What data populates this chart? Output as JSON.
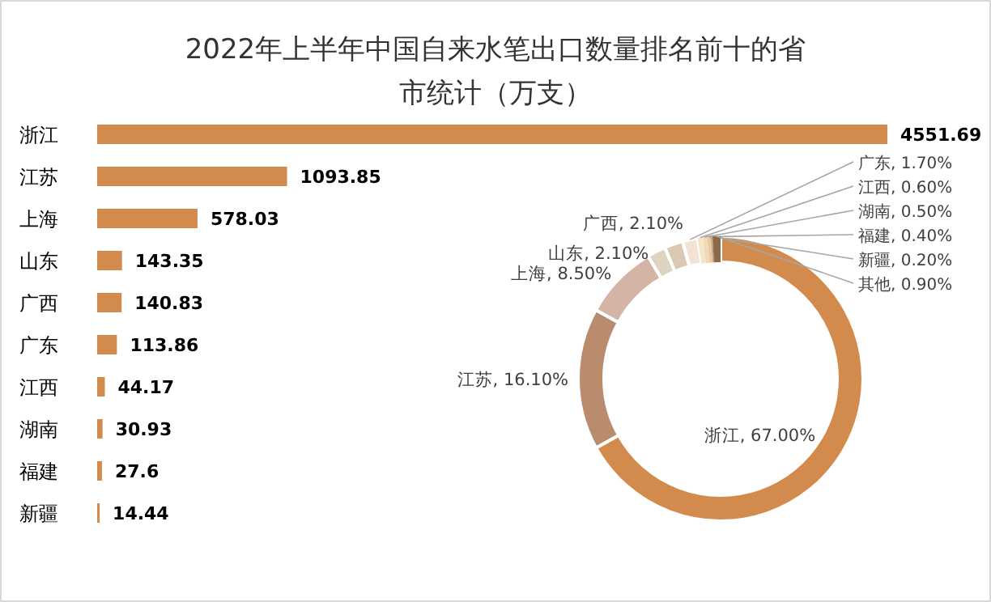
{
  "chart_data": [
    {
      "type": "bar",
      "orientation": "horizontal",
      "title": "2022年上半年中国自来水笔出口数量排名前十的省市统计（万支）",
      "categories": [
        "浙江",
        "江苏",
        "上海",
        "山东",
        "广西",
        "广东",
        "江西",
        "湖南",
        "福建",
        "新疆"
      ],
      "values": [
        4551.69,
        1093.85,
        578.03,
        143.35,
        140.83,
        113.86,
        44.17,
        30.93,
        27.6,
        14.44
      ],
      "color": "#d38b4d",
      "data_labels": true
    },
    {
      "type": "donut",
      "categories": [
        "浙江",
        "江苏",
        "上海",
        "山东",
        "广西",
        "广东",
        "江西",
        "湖南",
        "福建",
        "新疆",
        "其他"
      ],
      "values": [
        67.0,
        16.1,
        8.5,
        2.1,
        2.1,
        1.7,
        0.6,
        0.5,
        0.4,
        0.2,
        0.9
      ],
      "value_labels": [
        "67.00%",
        "16.10%",
        "8.50%",
        "2.10%",
        "2.10%",
        "1.70%",
        "0.60%",
        "0.50%",
        "0.40%",
        "0.20%",
        "0.90%"
      ],
      "colors": [
        "#d38b4d",
        "#b98c6e",
        "#d4b5a5",
        "#dcd3c1",
        "#d9c9b3",
        "#f3e3d6",
        "#f6e6c8",
        "#f0d9b8",
        "#e8c9a0",
        "#c9a27a",
        "#8a6a4a"
      ]
    }
  ]
}
